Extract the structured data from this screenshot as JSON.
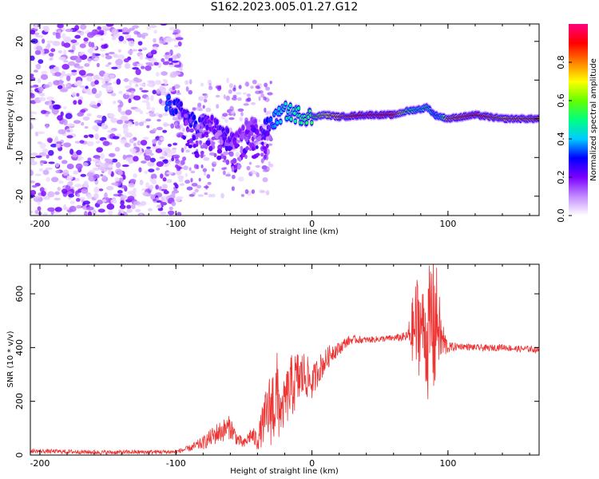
{
  "title": "S162.2023.005.01.27.G12",
  "chart_data": [
    {
      "type": "heatmap",
      "xlabel": "Height of straight line (km)",
      "ylabel": "Frequency (Hz)",
      "xlim": [
        -207,
        167
      ],
      "ylim": [
        -25,
        24.5
      ],
      "xticks": [
        -200,
        -100,
        0,
        100
      ],
      "yticks": [
        -20,
        -10,
        0,
        10,
        20
      ],
      "ridge": {
        "x": [
          -107,
          -95,
          -85,
          -75,
          -65,
          -55,
          -45,
          -38,
          -30,
          -20,
          -10,
          0,
          10,
          20,
          40,
          60,
          70,
          80,
          85,
          90,
          95,
          100,
          120,
          140,
          167
        ],
        "freq": [
          4,
          2,
          -2,
          -1,
          -4,
          -6,
          -1,
          -4,
          -1,
          2,
          1,
          0.5,
          1,
          0.5,
          1,
          1,
          2,
          2.5,
          3,
          1,
          0.5,
          0,
          1,
          0,
          0
        ],
        "amplitude": [
          0.35,
          0.25,
          0.3,
          0.2,
          0.25,
          0.2,
          0.15,
          0.2,
          0.35,
          0.45,
          0.5,
          0.55,
          0.7,
          0.8,
          0.95,
          0.9,
          0.55,
          0.45,
          0.5,
          0.35,
          0.4,
          0.8,
          0.9,
          0.8,
          0.85
        ]
      },
      "noise_region_x": [
        -207,
        -100
      ],
      "colorbar": {
        "label": "Normalized spectral amplitude",
        "ticks": [
          0.0,
          0.2,
          0.4,
          0.6,
          0.8
        ],
        "range": [
          0,
          1
        ],
        "colors": [
          "#ffffff",
          "#c28bff",
          "#7a00ff",
          "#0000ff",
          "#00ccff",
          "#00ff80",
          "#66ff00",
          "#ffff00",
          "#ff8000",
          "#ff0000",
          "#ff0080"
        ]
      }
    },
    {
      "type": "line",
      "xlabel": "Height of straight line (km)",
      "ylabel": "SNR (10 * v/v)",
      "xlim": [
        -207,
        167
      ],
      "ylim": [
        0,
        710
      ],
      "xticks": [
        -200,
        -100,
        0,
        100
      ],
      "yticks": [
        0,
        200,
        400,
        600
      ],
      "color": "#ee3333",
      "x": [
        -207,
        -150,
        -100,
        -90,
        -80,
        -70,
        -60,
        -55,
        -50,
        -45,
        -40,
        -35,
        -30,
        -25,
        -22,
        -20,
        -15,
        -10,
        -5,
        0,
        5,
        10,
        15,
        20,
        25,
        30,
        40,
        50,
        60,
        70,
        75,
        78,
        80,
        85,
        88,
        90,
        92,
        95,
        100,
        110,
        120,
        130,
        140,
        150,
        160,
        167
      ],
      "values": [
        15,
        10,
        12,
        25,
        45,
        80,
        105,
        60,
        40,
        75,
        55,
        130,
        180,
        215,
        150,
        200,
        255,
        285,
        300,
        265,
        320,
        350,
        385,
        395,
        420,
        430,
        428,
        432,
        435,
        440,
        470,
        480,
        500,
        420,
        510,
        480,
        510,
        430,
        400,
        405,
        400,
        398,
        402,
        395,
        395,
        390
      ],
      "spread": [
        8,
        8,
        8,
        12,
        25,
        40,
        45,
        25,
        20,
        30,
        40,
        90,
        150,
        180,
        60,
        100,
        120,
        110,
        90,
        60,
        55,
        45,
        35,
        25,
        20,
        15,
        12,
        12,
        12,
        20,
        150,
        220,
        120,
        220,
        280,
        300,
        180,
        100,
        20,
        12,
        12,
        12,
        12,
        12,
        12,
        12
      ]
    }
  ]
}
